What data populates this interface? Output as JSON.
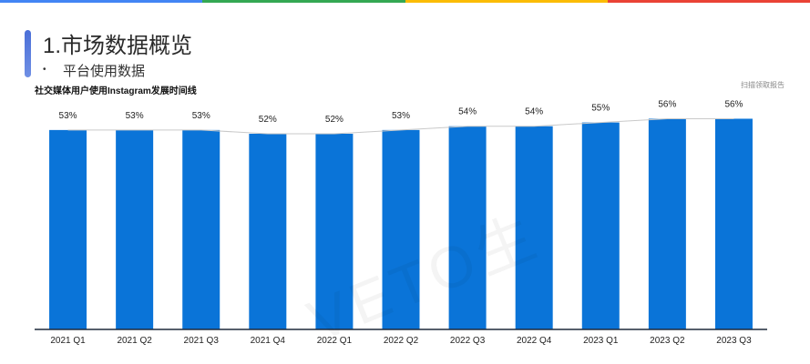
{
  "page": {
    "title": "1.市场数据概览",
    "subtitle": "平台使用数据",
    "bullet": "•",
    "scan_note": "扫描领取报告",
    "watermark": "VETO生"
  },
  "colors": {
    "bar": "#0a74d8",
    "trend_line": "#c9c9c9",
    "axis": "#1f2a3c",
    "stripe": [
      "#4285f4",
      "#34a853",
      "#fbbc05",
      "#ea4335"
    ]
  },
  "chart_data": {
    "type": "bar",
    "title": "社交媒体用户使用Instagram发展时间线",
    "categories": [
      "2021 Q1",
      "2021 Q2",
      "2021 Q3",
      "2021 Q4",
      "2022 Q1",
      "2022 Q2",
      "2022 Q3",
      "2022 Q4",
      "2023 Q1",
      "2023 Q2",
      "2023 Q3"
    ],
    "values": [
      53,
      53,
      53,
      52,
      52,
      53,
      54,
      54,
      55,
      56,
      56
    ],
    "value_labels": [
      "53%",
      "53%",
      "53%",
      "52%",
      "52%",
      "53%",
      "54%",
      "54%",
      "55%",
      "56%",
      "56%"
    ],
    "xlabel": "",
    "ylabel": "",
    "ylim": [
      0,
      59.5
    ],
    "grid": false,
    "legend": "none",
    "trend_line": true
  }
}
